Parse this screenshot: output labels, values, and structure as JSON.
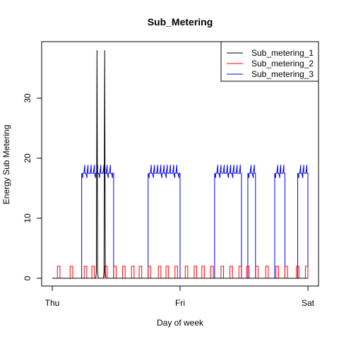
{
  "chart_data": {
    "type": "line",
    "title": "Sub_Metering",
    "xlabel": "Day of week",
    "ylabel": "Energy Sub Metering",
    "x_ticks": [
      "Thu",
      "Fri",
      "Sat"
    ],
    "xlim": [
      0,
      2
    ],
    "ylim": [
      -1.5,
      40
    ],
    "y_ticks": [
      0,
      10,
      20,
      30
    ],
    "legend_position": "top-right",
    "grid": false,
    "series": [
      {
        "name": "Sub_metering_1",
        "color": "#000000",
        "points": [
          [
            0.34,
            0
          ],
          [
            0.345,
            1
          ],
          [
            0.35,
            38
          ],
          [
            0.355,
            1
          ],
          [
            0.36,
            0
          ],
          [
            0.4,
            0
          ],
          [
            0.405,
            1
          ],
          [
            0.41,
            38
          ],
          [
            0.415,
            1
          ],
          [
            0.42,
            0
          ]
        ]
      },
      {
        "name": "Sub_metering_2",
        "color": "#ff0000",
        "spikes": {
          "x": [
            0.05,
            0.15,
            0.26,
            0.32,
            0.42,
            0.49,
            0.56,
            0.63,
            0.69,
            0.76,
            0.84,
            0.9,
            0.97,
            1.05,
            1.12,
            1.18,
            1.25,
            1.33,
            1.4,
            1.47,
            1.53,
            1.6,
            1.68,
            1.76,
            1.83,
            1.92,
            1.99
          ],
          "height": 2,
          "width": 0.02
        }
      },
      {
        "name": "Sub_metering_3",
        "color": "#0000ff",
        "blocks": [
          {
            "start": 0.23,
            "end": 0.48,
            "level": 17.5
          },
          {
            "start": 0.75,
            "end": 1.0,
            "level": 17.5
          },
          {
            "start": 1.27,
            "end": 1.48,
            "level": 17.5
          },
          {
            "start": 1.53,
            "end": 1.59,
            "level": 17.5
          },
          {
            "start": 1.74,
            "end": 1.82,
            "level": 17.5
          },
          {
            "start": 1.92,
            "end": 2.0,
            "level": 17.5
          }
        ]
      }
    ]
  }
}
